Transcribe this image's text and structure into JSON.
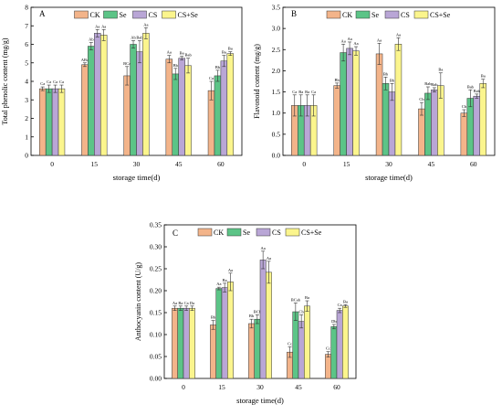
{
  "colors": {
    "CK": "#f3b48a",
    "Se": "#5cc487",
    "CS": "#b9a6d6",
    "CS+Se": "#fbf58d",
    "axis": "#000000"
  },
  "chart_data": [
    {
      "panel_letter": "A",
      "type": "bar",
      "ylabel": "Total phenolic content (mg/g)",
      "xlabel": "storage time(d)",
      "categories": [
        "0",
        "15",
        "30",
        "45",
        "60"
      ],
      "ylim": [
        0,
        8
      ],
      "yticks": [
        "0",
        "1",
        "2",
        "3",
        "4",
        "5",
        "6",
        "7",
        "8"
      ],
      "legend_position": "top",
      "series": [
        {
          "name": "CK",
          "values": [
            3.6,
            4.9,
            4.3,
            5.2,
            3.5
          ],
          "errors": [
            0.1,
            0.1,
            0.5,
            0.2,
            0.5
          ],
          "letters": [
            "Ca",
            "ABa",
            "BCa",
            "Aa",
            "Ca"
          ]
        },
        {
          "name": "Se",
          "values": [
            3.6,
            5.9,
            6.0,
            4.4,
            4.3
          ],
          "errors": [
            0.2,
            0.2,
            0.2,
            0.3,
            0.3
          ],
          "letters": [
            "Ca",
            "Ab",
            "Ab",
            "Bb",
            "Bb"
          ]
        },
        {
          "name": "CS",
          "values": [
            3.6,
            6.6,
            5.6,
            5.25,
            5.1
          ],
          "errors": [
            0.2,
            0.2,
            0.6,
            0.1,
            0.3
          ],
          "letters": [
            "Ca",
            "Aa",
            "Bab",
            "Ba",
            "Ba"
          ]
        },
        {
          "name": "CS+Se",
          "values": [
            3.6,
            6.5,
            6.6,
            4.85,
            5.5
          ],
          "errors": [
            0.2,
            0.3,
            0.3,
            0.4,
            0.1
          ],
          "letters": [
            "Ca",
            "Aa",
            "Aa",
            "Bab",
            "Ba"
          ]
        }
      ]
    },
    {
      "panel_letter": "B",
      "type": "bar",
      "ylabel": "Flavonoid content (mg/g)",
      "xlabel": "storage time(d)",
      "categories": [
        "0",
        "15",
        "30",
        "45",
        "60"
      ],
      "ylim": [
        0,
        3.5
      ],
      "yticks": [
        "0.0",
        "0.5",
        "1.0",
        "1.5",
        "2.0",
        "2.5",
        "3.0",
        "3.5"
      ],
      "legend_position": "top",
      "series": [
        {
          "name": "CK",
          "values": [
            1.18,
            1.65,
            2.4,
            1.1,
            1.0
          ],
          "errors": [
            0.25,
            0.06,
            0.25,
            0.15,
            0.08
          ],
          "letters": [
            "Ca",
            "Bb",
            "Aa",
            "Cb",
            "Cb"
          ]
        },
        {
          "name": "Se",
          "values": [
            1.18,
            2.43,
            1.7,
            1.47,
            1.35
          ],
          "errors": [
            0.25,
            0.2,
            0.15,
            0.15,
            0.2
          ],
          "letters": [
            "Ba",
            "Aa",
            "Bb",
            "Bab",
            "Bab"
          ]
        },
        {
          "name": "CS",
          "values": [
            1.18,
            2.53,
            1.5,
            1.55,
            1.4
          ],
          "errors": [
            0.25,
            0.15,
            0.2,
            0.05,
            0.05
          ],
          "letters": [
            "Ba",
            "Aa",
            "Bb",
            "Bab",
            "Bab"
          ]
        },
        {
          "name": "CS+Se",
          "values": [
            1.18,
            2.47,
            2.63,
            1.65,
            1.7
          ],
          "errors": [
            0.25,
            0.1,
            0.15,
            0.3,
            0.1
          ],
          "letters": [
            "Ca",
            "Aa",
            "Aa",
            "Ba",
            "Ba"
          ]
        }
      ]
    },
    {
      "panel_letter": "C",
      "type": "bar",
      "ylabel": "Anthocyanin content (U/g)",
      "xlabel": "storage time(d)",
      "categories": [
        "0",
        "15",
        "30",
        "45",
        "60"
      ],
      "ylim": [
        0,
        0.35
      ],
      "yticks": [
        "0.00",
        "0.05",
        "0.10",
        "0.15",
        "0.20",
        "0.25",
        "0.30",
        "0.35"
      ],
      "legend_position": "top",
      "series": [
        {
          "name": "CK",
          "values": [
            0.16,
            0.122,
            0.125,
            0.06,
            0.055
          ],
          "errors": [
            0.005,
            0.01,
            0.01,
            0.012,
            0.006
          ],
          "letters": [
            "Aa",
            "Bb",
            "Bb",
            "Cc",
            "Cc"
          ]
        },
        {
          "name": "Se",
          "values": [
            0.16,
            0.205,
            0.135,
            0.152,
            0.118
          ],
          "errors": [
            0.005,
            0.003,
            0.01,
            0.02,
            0.005
          ],
          "letters": [
            "Ba",
            "Aa",
            "BCb",
            "BCab",
            "Db"
          ]
        },
        {
          "name": "CS",
          "values": [
            0.16,
            0.207,
            0.27,
            0.13,
            0.155
          ],
          "errors": [
            0.005,
            0.01,
            0.02,
            0.015,
            0.005
          ],
          "letters": [
            "Ca",
            "Ba",
            "Aa",
            "Cb",
            "Ca"
          ]
        },
        {
          "name": "CS+Se",
          "values": [
            0.16,
            0.22,
            0.242,
            0.165,
            0.165
          ],
          "errors": [
            0.005,
            0.02,
            0.025,
            0.012,
            0.003
          ],
          "letters": [
            "Da",
            "Aa",
            "Aa",
            "Ba",
            "Ba"
          ]
        }
      ]
    }
  ]
}
